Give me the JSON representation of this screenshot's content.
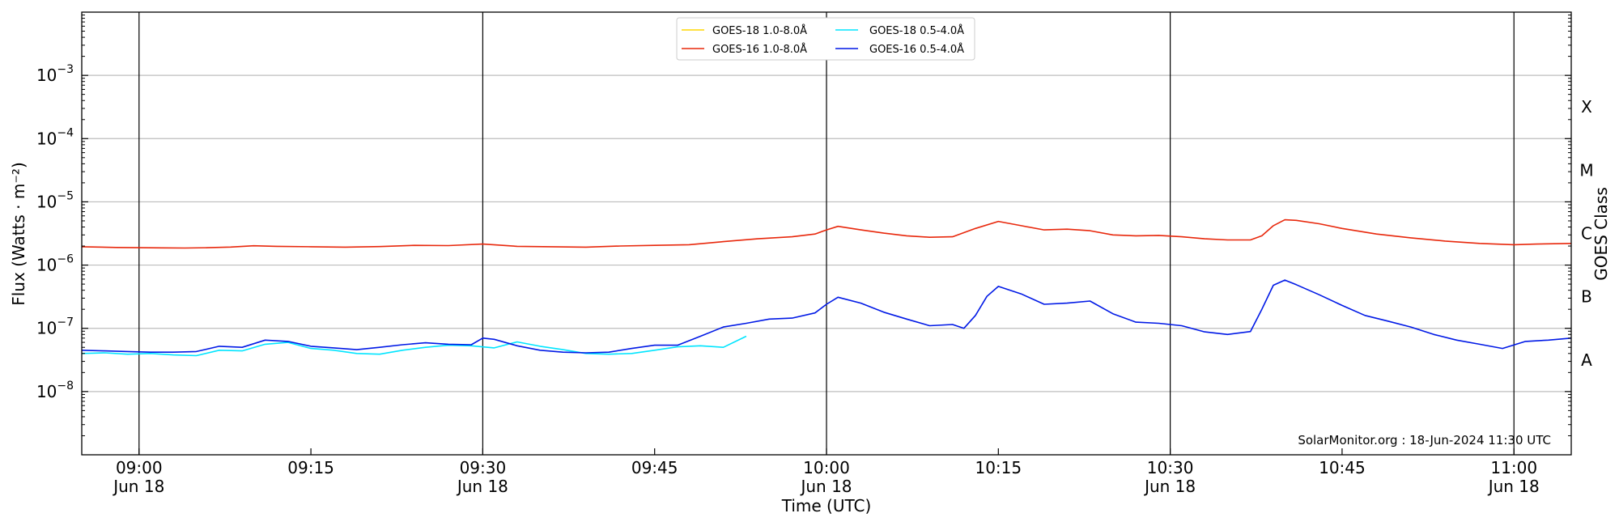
{
  "chart_data": {
    "type": "line",
    "title": "",
    "xlabel": "Time (UTC)",
    "ylabel": "Flux (Watts · m⁻²)",
    "y2label": "GOES Class",
    "yscale": "log",
    "xlim": [
      "08:55",
      "11:05"
    ],
    "ylim": [
      1e-09,
      0.01
    ],
    "grid": "horizontal at each decade",
    "x_ticks": [
      {
        "time": "09:00",
        "line1": "09:00",
        "line2": "Jun 18",
        "vline": true
      },
      {
        "time": "09:15",
        "line1": "09:15",
        "line2": "",
        "vline": false
      },
      {
        "time": "09:30",
        "line1": "09:30",
        "line2": "Jun 18",
        "vline": true
      },
      {
        "time": "09:45",
        "line1": "09:45",
        "line2": "",
        "vline": false
      },
      {
        "time": "10:00",
        "line1": "10:00",
        "line2": "Jun 18",
        "vline": true
      },
      {
        "time": "10:15",
        "line1": "10:15",
        "line2": "",
        "vline": false
      },
      {
        "time": "10:30",
        "line1": "10:30",
        "line2": "Jun 18",
        "vline": true
      },
      {
        "time": "10:45",
        "line1": "10:45",
        "line2": "",
        "vline": false
      },
      {
        "time": "11:00",
        "line1": "11:00",
        "line2": "Jun 18",
        "vline": true
      }
    ],
    "y_ticks": [
      {
        "value": 1e-08,
        "base": "10",
        "exp": "−8"
      },
      {
        "value": 1e-07,
        "base": "10",
        "exp": "−7"
      },
      {
        "value": 1e-06,
        "base": "10",
        "exp": "−6"
      },
      {
        "value": 1e-05,
        "base": "10",
        "exp": "−5"
      },
      {
        "value": 0.0001,
        "base": "10",
        "exp": "−4"
      },
      {
        "value": 0.001,
        "base": "10",
        "exp": "−3"
      }
    ],
    "goes_classes": [
      {
        "label": "A",
        "value": 3.16e-08
      },
      {
        "label": "B",
        "value": 3.16e-07
      },
      {
        "label": "C",
        "value": 3.16e-06
      },
      {
        "label": "M",
        "value": 3.16e-05
      },
      {
        "label": "X",
        "value": 0.000316
      }
    ],
    "legend_placement": "top-center",
    "credit": "SolarMonitor.org : 18-Jun-2024 11:30 UTC",
    "series": [
      {
        "name": "GOES-18 1.0-8.0Å",
        "color": "#ffd700",
        "x": [],
        "values": []
      },
      {
        "name": "GOES-18 0.5-4.0Å",
        "color": "#00e5ff",
        "x": [
          "08:55",
          "08:57",
          "08:59",
          "09:01",
          "09:03",
          "09:05",
          "09:07",
          "09:09",
          "09:11",
          "09:13",
          "09:15",
          "09:17",
          "09:19",
          "09:21",
          "09:23",
          "09:25",
          "09:27",
          "09:29",
          "09:31",
          "09:33",
          "09:35",
          "09:37",
          "09:39",
          "09:41",
          "09:43",
          "09:45",
          "09:47",
          "09:49",
          "09:51",
          "09:53"
        ],
        "values": [
          4e-08,
          4.1e-08,
          3.9e-08,
          4e-08,
          3.8e-08,
          3.7e-08,
          4.5e-08,
          4.4e-08,
          5.6e-08,
          6e-08,
          4.8e-08,
          4.5e-08,
          4e-08,
          3.9e-08,
          4.5e-08,
          5e-08,
          5.4e-08,
          5.3e-08,
          4.9e-08,
          6.1e-08,
          5.2e-08,
          4.6e-08,
          4e-08,
          3.9e-08,
          4e-08,
          4.5e-08,
          5.1e-08,
          5.3e-08,
          5e-08,
          7.5e-08
        ]
      },
      {
        "name": "GOES-16 1.0-8.0Å",
        "color": "#e8280c",
        "x": [
          "08:55",
          "08:58",
          "09:00",
          "09:02",
          "09:04",
          "09:06",
          "09:08",
          "09:10",
          "09:12",
          "09:15",
          "09:18",
          "09:21",
          "09:24",
          "09:27",
          "09:30",
          "09:33",
          "09:36",
          "09:39",
          "09:42",
          "09:45",
          "09:48",
          "09:51",
          "09:54",
          "09:57",
          "09:59",
          "10:00",
          "10:01",
          "10:03",
          "10:05",
          "10:07",
          "10:09",
          "10:11",
          "10:13",
          "10:15",
          "10:17",
          "10:19",
          "10:21",
          "10:23",
          "10:25",
          "10:27",
          "10:29",
          "10:31",
          "10:33",
          "10:35",
          "10:37",
          "10:38",
          "10:39",
          "10:40",
          "10:41",
          "10:43",
          "10:45",
          "10:48",
          "10:51",
          "10:54",
          "10:57",
          "11:00",
          "11:02",
          "11:05"
        ],
        "values": [
          1.95e-06,
          1.9e-06,
          1.88e-06,
          1.87e-06,
          1.86e-06,
          1.88e-06,
          1.93e-06,
          2.02e-06,
          1.98e-06,
          1.95e-06,
          1.92e-06,
          1.96e-06,
          2.05e-06,
          2.03e-06,
          2.15e-06,
          1.98e-06,
          1.95e-06,
          1.92e-06,
          2e-06,
          2.05e-06,
          2.1e-06,
          2.35e-06,
          2.6e-06,
          2.8e-06,
          3.1e-06,
          3.6e-06,
          4.1e-06,
          3.6e-06,
          3.2e-06,
          2.9e-06,
          2.75e-06,
          2.8e-06,
          3.8e-06,
          4.9e-06,
          4.2e-06,
          3.6e-06,
          3.7e-06,
          3.5e-06,
          3e-06,
          2.9e-06,
          2.95e-06,
          2.8e-06,
          2.6e-06,
          2.5e-06,
          2.5e-06,
          2.9e-06,
          4.2e-06,
          5.2e-06,
          5.1e-06,
          4.5e-06,
          3.8e-06,
          3.1e-06,
          2.7e-06,
          2.4e-06,
          2.2e-06,
          2.1e-06,
          2.15e-06,
          2.2e-06
        ]
      },
      {
        "name": "GOES-16 0.5-4.0Å",
        "color": "#0019e6",
        "x": [
          "08:55",
          "08:57",
          "08:59",
          "09:01",
          "09:03",
          "09:05",
          "09:07",
          "09:09",
          "09:11",
          "09:13",
          "09:15",
          "09:17",
          "09:19",
          "09:21",
          "09:23",
          "09:25",
          "09:27",
          "09:29",
          "09:30",
          "09:31",
          "09:33",
          "09:35",
          "09:37",
          "09:39",
          "09:41",
          "09:43",
          "09:45",
          "09:47",
          "09:49",
          "09:51",
          "09:53",
          "09:55",
          "09:57",
          "09:59",
          "10:00",
          "10:01",
          "10:03",
          "10:05",
          "10:07",
          "10:09",
          "10:11",
          "10:12",
          "10:13",
          "10:14",
          "10:15",
          "10:17",
          "10:19",
          "10:21",
          "10:23",
          "10:25",
          "10:27",
          "10:29",
          "10:31",
          "10:33",
          "10:35",
          "10:37",
          "10:38",
          "10:39",
          "10:40",
          "10:41",
          "10:43",
          "10:45",
          "10:47",
          "10:49",
          "10:51",
          "10:53",
          "10:55",
          "10:57",
          "10:59",
          "11:01",
          "11:03",
          "11:05"
        ],
        "values": [
          4.5e-08,
          4.4e-08,
          4.3e-08,
          4.2e-08,
          4.2e-08,
          4.3e-08,
          5.2e-08,
          5e-08,
          6.5e-08,
          6.2e-08,
          5.2e-08,
          4.9e-08,
          4.6e-08,
          5e-08,
          5.5e-08,
          5.9e-08,
          5.6e-08,
          5.5e-08,
          7e-08,
          6.7e-08,
          5.3e-08,
          4.5e-08,
          4.2e-08,
          4.1e-08,
          4.2e-08,
          4.8e-08,
          5.4e-08,
          5.4e-08,
          7.5e-08,
          1.05e-07,
          1.2e-07,
          1.4e-07,
          1.45e-07,
          1.75e-07,
          2.4e-07,
          3.1e-07,
          2.5e-07,
          1.8e-07,
          1.4e-07,
          1.1e-07,
          1.15e-07,
          1e-07,
          1.6e-07,
          3.2e-07,
          4.6e-07,
          3.5e-07,
          2.4e-07,
          2.5e-07,
          2.7e-07,
          1.7e-07,
          1.25e-07,
          1.2e-07,
          1.1e-07,
          8.8e-08,
          8e-08,
          8.9e-08,
          2e-07,
          4.8e-07,
          5.8e-07,
          4.9e-07,
          3.4e-07,
          2.3e-07,
          1.6e-07,
          1.3e-07,
          1.05e-07,
          8e-08,
          6.5e-08,
          5.6e-08,
          4.8e-08,
          6.2e-08,
          6.5e-08,
          7e-08
        ]
      }
    ]
  }
}
